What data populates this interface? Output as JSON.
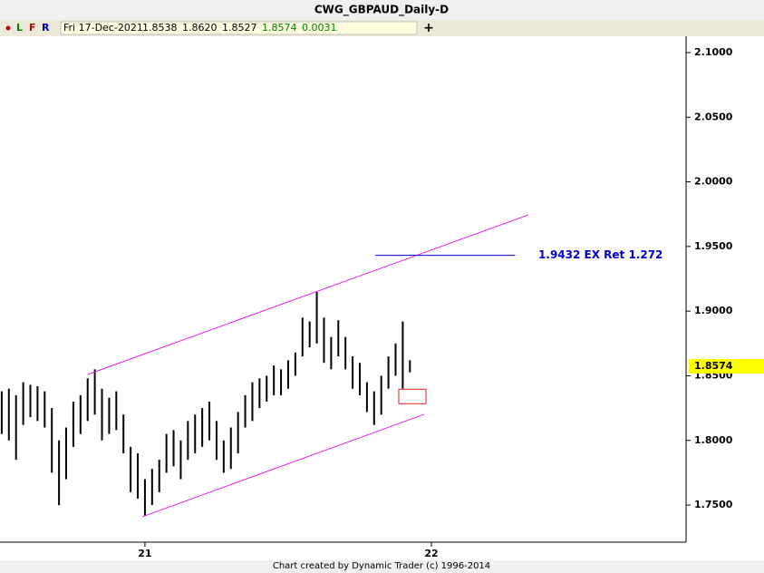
{
  "chart_data": {
    "type": "range_bar",
    "title": "CWG_GBPAUD_Daily-D",
    "toolbar": {
      "buttons": [
        "L",
        "F",
        "R"
      ],
      "add": "+"
    },
    "readout": {
      "date": "Fri 17-Dec-2021",
      "open": "1.8538",
      "high": "1.8620",
      "low": "1.8527",
      "close": "1.8574",
      "change": "0.0031"
    },
    "footer": "Chart created by Dynamic Trader  (c) 1996-2014",
    "color": "#000000",
    "x": [
      2020.5,
      2020.525,
      2020.55,
      2020.575,
      2020.6,
      2020.625,
      2020.65,
      2020.675,
      2020.7,
      2020.725,
      2020.75,
      2020.775,
      2020.8,
      2020.825,
      2020.85,
      2020.875,
      2020.9,
      2020.925,
      2020.95,
      2020.975,
      2021.0,
      2021.025,
      2021.05,
      2021.075,
      2021.1,
      2021.125,
      2021.15,
      2021.175,
      2021.2,
      2021.225,
      2021.25,
      2021.275,
      2021.3,
      2021.325,
      2021.35,
      2021.375,
      2021.4,
      2021.425,
      2021.45,
      2021.475,
      2021.5,
      2021.525,
      2021.55,
      2021.575,
      2021.6,
      2021.625,
      2021.65,
      2021.675,
      2021.7,
      2021.725,
      2021.75,
      2021.775,
      2021.8,
      2021.825,
      2021.85,
      2021.875,
      2021.9,
      2021.925
    ],
    "high": [
      1.838,
      1.84,
      1.835,
      1.845,
      1.843,
      1.842,
      1.838,
      1.825,
      1.8,
      1.81,
      1.83,
      1.835,
      1.848,
      1.855,
      1.84,
      1.833,
      1.838,
      1.82,
      1.795,
      1.79,
      1.77,
      1.778,
      1.785,
      1.805,
      1.808,
      1.8,
      1.815,
      1.82,
      1.825,
      1.83,
      1.815,
      1.8,
      1.81,
      1.822,
      1.835,
      1.845,
      1.848,
      1.85,
      1.858,
      1.855,
      1.862,
      1.868,
      1.895,
      1.892,
      1.915,
      1.895,
      1.88,
      1.893,
      1.88,
      1.865,
      1.86,
      1.845,
      1.838,
      1.85,
      1.865,
      1.875,
      1.892,
      1.862
    ],
    "low": [
      1.805,
      1.8,
      1.785,
      1.812,
      1.818,
      1.815,
      1.81,
      1.775,
      1.75,
      1.77,
      1.795,
      1.805,
      1.815,
      1.82,
      1.8,
      1.805,
      1.808,
      1.79,
      1.76,
      1.755,
      1.742,
      1.75,
      1.76,
      1.775,
      1.78,
      1.77,
      1.785,
      1.79,
      1.795,
      1.8,
      1.785,
      1.775,
      1.778,
      1.79,
      1.81,
      1.815,
      1.825,
      1.83,
      1.835,
      1.835,
      1.84,
      1.85,
      1.865,
      1.872,
      1.875,
      1.86,
      1.855,
      1.865,
      1.855,
      1.84,
      1.835,
      1.822,
      1.812,
      1.82,
      1.84,
      1.85,
      1.84,
      1.8527
    ],
    "xlim": [
      2020.494,
      2022.889
    ],
    "ylim": [
      1.7213,
      2.1126
    ],
    "xticks": [
      {
        "value": 2021,
        "label": "21"
      },
      {
        "value": 2022,
        "label": "22"
      }
    ],
    "yticks": [
      {
        "value": 1.75,
        "label": "1.7500"
      },
      {
        "value": 1.8,
        "label": "1.8000"
      },
      {
        "value": 1.85,
        "label": "1.8500"
      },
      {
        "value": 1.9,
        "label": "1.9000"
      },
      {
        "value": 1.95,
        "label": "1.9500"
      },
      {
        "value": 2.0,
        "label": "2.0000"
      },
      {
        "value": 2.05,
        "label": "2.0500"
      },
      {
        "value": 2.1,
        "label": "2.1000"
      }
    ],
    "last_price": 1.8574,
    "channel": [
      {
        "x": [
          2020.801,
          2022.339
        ],
        "y": [
          1.8511,
          1.9745
        ],
        "color": "#e020e0"
      },
      {
        "x": [
          2020.991,
          2021.975
        ],
        "y": [
          1.741,
          1.8202
        ],
        "color": "#e020e0"
      }
    ],
    "level": {
      "value": 1.9432,
      "x": [
        2021.804,
        2022.351
      ],
      "label": "1.9432 EX Ret 1.272",
      "color": "#0000cc"
    },
    "box": {
      "x": [
        2021.886,
        2021.981
      ],
      "y": [
        1.8284,
        1.8396
      ],
      "color": "#e02020"
    }
  }
}
